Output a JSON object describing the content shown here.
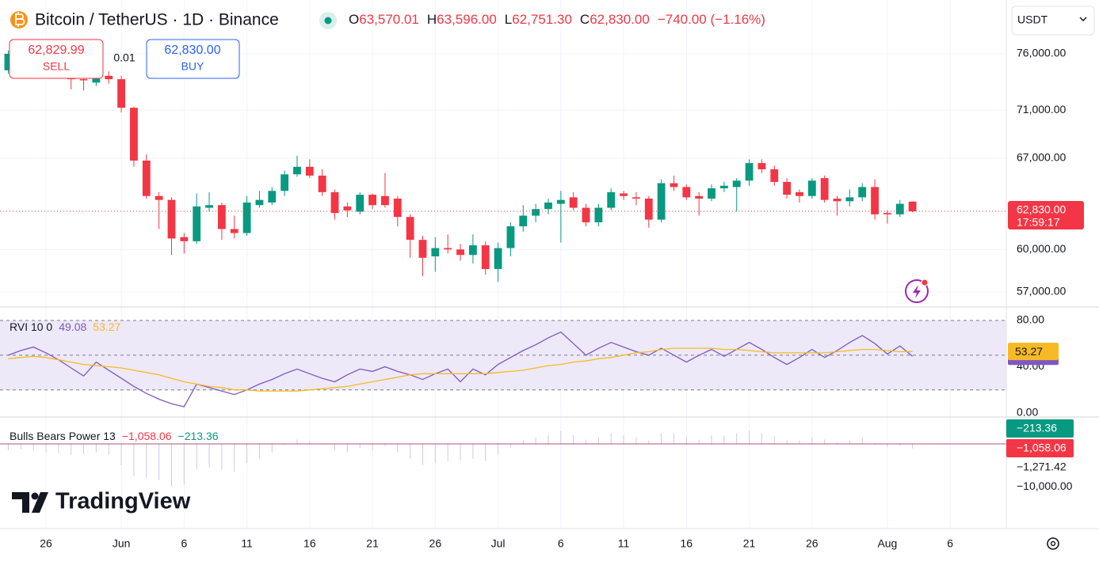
{
  "header": {
    "symbol": "Bitcoin / TetherUS · 1D · Binance",
    "ohlc": [
      {
        "key": "O",
        "value": "63,570.01"
      },
      {
        "key": "H",
        "value": "63,596.00"
      },
      {
        "key": "L",
        "value": "62,751.30"
      },
      {
        "key": "C",
        "value": "62,830.00"
      }
    ],
    "change": "−740.00 (−1.16%)"
  },
  "trade": {
    "sell_price": "62,829.99",
    "sell": "SELL",
    "spread": "0.01",
    "buy_price": "62,830.00",
    "buy": "BUY"
  },
  "currency": "USDT",
  "logo": "TradingView",
  "chart_data": [
    {
      "type": "candlestick",
      "open": [
        74500,
        75000,
        75200,
        74800,
        74600,
        74000,
        73700,
        73400,
        74000,
        73700,
        71200,
        66800,
        64000,
        63700,
        60900,
        60600,
        63100,
        63300,
        61500,
        61200,
        63300,
        63500,
        64400,
        65700,
        66300,
        65600,
        64300,
        63200,
        62800,
        64100,
        64000,
        63800,
        62400,
        60700,
        59500,
        60100,
        60000,
        59600,
        60300,
        58600,
        60100,
        61700,
        62500,
        63000,
        63400,
        63900,
        63100,
        62000,
        63100,
        64200,
        63900,
        63800,
        62200,
        65000,
        64700,
        64000,
        63800,
        64600,
        64700,
        65200,
        66600,
        66100,
        65100,
        64300,
        64000,
        65400,
        63800,
        63600,
        63900,
        64700,
        62700,
        62600,
        63570.01
      ],
      "high": [
        76300,
        75800,
        75600,
        75300,
        75000,
        74300,
        74000,
        74300,
        74400,
        74000,
        71300,
        67300,
        64300,
        63900,
        61200,
        64200,
        64300,
        63500,
        62500,
        64000,
        64400,
        64700,
        66000,
        67200,
        66900,
        66100,
        64500,
        63500,
        64300,
        64200,
        65800,
        64000,
        62600,
        61000,
        60900,
        61100,
        60400,
        61100,
        60600,
        60500,
        62000,
        63300,
        63400,
        63800,
        64400,
        64300,
        63400,
        63400,
        64600,
        64400,
        64300,
        64000,
        65300,
        65600,
        64900,
        64300,
        64900,
        65100,
        65400,
        66900,
        66900,
        66400,
        65400,
        64500,
        65400,
        65600,
        64000,
        64500,
        65000,
        65300,
        62900,
        63700,
        63596
      ],
      "low": [
        74200,
        74600,
        74500,
        74300,
        73900,
        72800,
        72700,
        73100,
        73300,
        70800,
        66300,
        63800,
        61500,
        59600,
        59700,
        60400,
        62800,
        60700,
        60800,
        61000,
        63100,
        63300,
        64000,
        65500,
        65400,
        64000,
        62200,
        62400,
        62600,
        63000,
        63100,
        61700,
        59400,
        58100,
        58400,
        59700,
        59200,
        59000,
        58200,
        57700,
        59500,
        61300,
        62000,
        62600,
        60500,
        62900,
        61700,
        61700,
        62900,
        63700,
        63300,
        61600,
        62000,
        64400,
        63700,
        62500,
        63600,
        64300,
        62800,
        64800,
        65800,
        64800,
        63800,
        63500,
        63800,
        63500,
        62500,
        63200,
        63600,
        62200,
        61900,
        62400,
        62751.3
      ],
      "close": [
        76000,
        75200,
        74800,
        74600,
        74000,
        73700,
        73600,
        74000,
        73700,
        71200,
        66800,
        64000,
        63700,
        60800,
        60600,
        63200,
        63300,
        61500,
        61200,
        63500,
        63700,
        64400,
        65700,
        66300,
        65600,
        64300,
        62700,
        62900,
        64100,
        63300,
        63300,
        62400,
        60700,
        59400,
        60100,
        60000,
        59600,
        60300,
        58600,
        60100,
        61700,
        62500,
        63000,
        63500,
        63700,
        63100,
        62000,
        63100,
        64300,
        64000,
        63800,
        62200,
        65000,
        64700,
        63900,
        63800,
        64600,
        64800,
        65200,
        66600,
        66100,
        65100,
        64100,
        64000,
        65200,
        63700,
        63600,
        63900,
        64700,
        62600,
        62600,
        63400,
        62830
      ],
      "up_color": "#089981",
      "down_color": "#f23645",
      "ylim": [
        55970,
        81100
      ],
      "log_scale": true,
      "yticks": [
        {
          "value": 57000,
          "label": "57,000.00"
        },
        {
          "value": 60000,
          "label": "60,000.00"
        },
        {
          "value": 67000,
          "label": "67,000.00"
        },
        {
          "value": 71000,
          "label": "71,000.00"
        },
        {
          "value": 76000,
          "label": "76,000.00"
        }
      ],
      "xlim": [
        -0.66,
        79.47
      ],
      "xticks": [
        {
          "value": 3,
          "label": "26"
        },
        {
          "value": 9,
          "label": "Jun"
        },
        {
          "value": 14,
          "label": "6"
        },
        {
          "value": 19,
          "label": "11"
        },
        {
          "value": 24,
          "label": "16"
        },
        {
          "value": 29,
          "label": "21"
        },
        {
          "value": 34,
          "label": "26"
        },
        {
          "value": 39,
          "label": "Jul"
        },
        {
          "value": 44,
          "label": "6"
        },
        {
          "value": 49,
          "label": "11"
        },
        {
          "value": 54,
          "label": "16"
        },
        {
          "value": 59,
          "label": "21"
        },
        {
          "value": 64,
          "label": "26"
        },
        {
          "value": 70,
          "label": "Aug"
        },
        {
          "value": 75,
          "label": "6"
        }
      ],
      "grid": true,
      "last_label": "62,830.00",
      "countdown": "17:59:17"
    },
    {
      "type": "line",
      "title": "RVI 10 0",
      "series": [
        {
          "color": "#7e57c2",
          "value_label": "49.08",
          "values": [
            50,
            54,
            57,
            52,
            46,
            39,
            32,
            44,
            37,
            30,
            23,
            17,
            12,
            8,
            5.5,
            25,
            22,
            19,
            16,
            20,
            25,
            29,
            34,
            38,
            34,
            30,
            27,
            33,
            38,
            36,
            40,
            36,
            33,
            29,
            34,
            38,
            27,
            38,
            33,
            42,
            48,
            54,
            59,
            65,
            70,
            60,
            50,
            56,
            61,
            57,
            53,
            50,
            56,
            50,
            44,
            50,
            55,
            49,
            55,
            61,
            55,
            48,
            42,
            48,
            55,
            48,
            54,
            61,
            67,
            60,
            51,
            58,
            49.08
          ]
        },
        {
          "color": "#f7b924",
          "value_label": "53.27",
          "values": [
            47,
            48,
            49,
            48,
            46,
            44,
            42,
            41,
            40,
            39,
            37,
            35,
            33,
            30,
            27,
            25,
            23,
            22,
            20,
            20,
            19,
            19,
            19,
            19,
            20,
            21,
            22,
            23,
            25,
            27,
            29,
            31,
            33,
            34,
            34,
            34,
            34,
            34,
            34,
            35,
            36,
            37,
            39,
            41,
            42,
            44,
            45,
            47,
            48,
            50,
            52,
            53,
            55,
            56,
            56,
            56,
            56,
            55,
            55,
            54,
            53,
            52,
            52,
            52,
            52,
            52,
            53,
            54,
            55,
            55,
            54,
            53,
            53.27
          ]
        }
      ],
      "levels": [
        80,
        50,
        20
      ],
      "band_color": "#ede9f8",
      "ylim": [
        -3.4,
        91.6
      ],
      "yticks": [
        {
          "value": 80,
          "label": "80.00"
        },
        {
          "value": 40,
          "label": "40.00"
        },
        {
          "value": 0,
          "label": "0.00"
        }
      ]
    },
    {
      "type": "histogram",
      "title": "Bulls Bears Power 13",
      "values": [
        -1500,
        -1200,
        -1500,
        -2000,
        -2200,
        -2500,
        -2400,
        -2000,
        -2600,
        -5000,
        -7500,
        -8000,
        -8500,
        -10000,
        -9500,
        -6000,
        -5500,
        -6000,
        -6500,
        -4500,
        -3500,
        -2000,
        -300,
        1000,
        600,
        -200,
        -1500,
        -2000,
        -1000,
        -1500,
        -500,
        -2000,
        -3500,
        -5000,
        -4500,
        -4000,
        -3800,
        -3500,
        -4000,
        -2500,
        -700,
        800,
        1500,
        2000,
        3000,
        2000,
        1000,
        1500,
        2500,
        2000,
        1500,
        800,
        2500,
        2500,
        1500,
        1000,
        2000,
        2000,
        2500,
        3000,
        2500,
        1800,
        800,
        800,
        1500,
        1000,
        300,
        800,
        1500,
        -200,
        -700,
        -400,
        -1058.06
      ],
      "color": "#cfc8e6",
      "zero_color": "#880e4f",
      "legend_values": [
        {
          "label": "−1,058.06",
          "color": "#f23645"
        },
        {
          "label": "−213.36",
          "color": "#089981"
        }
      ],
      "ylim": [
        -19800,
        6300
      ],
      "yticks": [
        {
          "value": -1271.42,
          "label": "−1,271.42"
        },
        {
          "value": -10000,
          "label": "−10,000.00"
        }
      ]
    }
  ]
}
